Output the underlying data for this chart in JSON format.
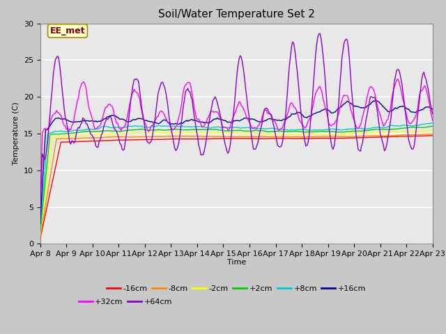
{
  "title": "Soil/Water Temperature Set 2",
  "xlabel": "Time",
  "ylabel": "Temperature (C)",
  "annotation": "EE_met",
  "annotation_color": "#800000",
  "annotation_bg": "#ffffcc",
  "ylim": [
    0,
    30
  ],
  "yticks": [
    0,
    5,
    10,
    15,
    20,
    25,
    30
  ],
  "x_labels": [
    "Apr 8",
    "Apr 9",
    "Apr 10",
    "Apr 11",
    "Apr 12",
    "Apr 13",
    "Apr 14",
    "Apr 15",
    "Apr 16",
    "Apr 17",
    "Apr 18",
    "Apr 19",
    "Apr 20",
    "Apr 21",
    "Apr 22",
    "Apr 23"
  ],
  "legend_entries": [
    {
      "label": "-16cm",
      "color": "#ff0000"
    },
    {
      "label": "-8cm",
      "color": "#ff8800"
    },
    {
      "label": "-2cm",
      "color": "#ffff00"
    },
    {
      "label": "+2cm",
      "color": "#00cc00"
    },
    {
      "label": "+8cm",
      "color": "#00cccc"
    },
    {
      "label": "+16cm",
      "color": "#000099"
    },
    {
      "label": "+32cm",
      "color": "#ff00ff"
    },
    {
      "label": "+64cm",
      "color": "#8800cc"
    }
  ],
  "fig_color": "#c8c8c8",
  "plot_bg": "#e8e8e8",
  "grid_color": "#ffffff",
  "title_fontsize": 11,
  "axis_fontsize": 8,
  "legend_fontsize": 8
}
